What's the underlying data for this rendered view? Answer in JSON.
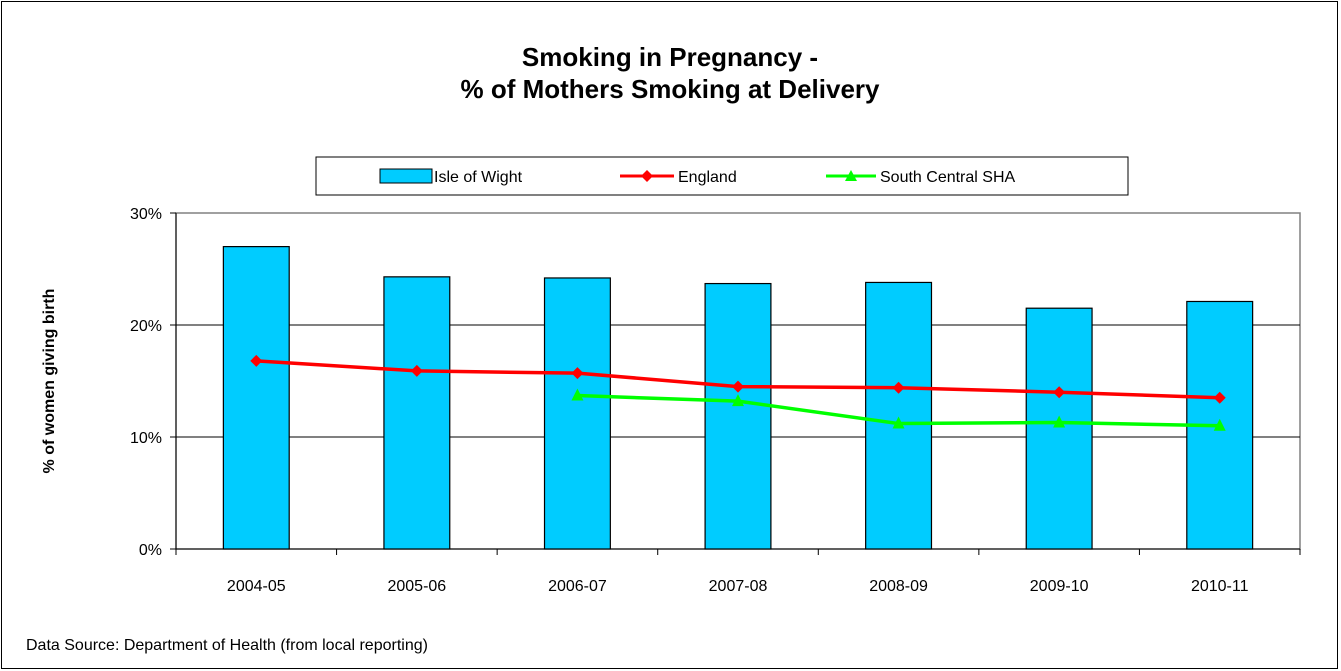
{
  "chart_data": {
    "type": "bar",
    "title_lines": [
      "Smoking in Pregnancy -",
      "% of Mothers Smoking at Delivery"
    ],
    "ylabel": "% of women giving birth",
    "xlabel": "",
    "ylim": [
      0,
      30
    ],
    "yticks": [
      {
        "value": 0,
        "label": "0%"
      },
      {
        "value": 10,
        "label": "10%"
      },
      {
        "value": 20,
        "label": "20%"
      },
      {
        "value": 30,
        "label": "30%"
      }
    ],
    "grid": true,
    "legend_position": "top",
    "categories": [
      "2004-05",
      "2005-06",
      "2006-07",
      "2007-08",
      "2008-09",
      "2009-10",
      "2010-11"
    ],
    "series": [
      {
        "name": "Isle of Wight",
        "kind": "bar",
        "color": "#00CCFF",
        "values": [
          27.0,
          24.3,
          24.2,
          23.7,
          23.8,
          21.5,
          22.1
        ]
      },
      {
        "name": "England",
        "kind": "line",
        "marker": "diamond",
        "color": "#FF0000",
        "values": [
          16.8,
          15.9,
          15.7,
          14.5,
          14.4,
          14.0,
          13.5
        ]
      },
      {
        "name": "South Central SHA",
        "kind": "line",
        "marker": "triangle",
        "color": "#00FF00",
        "values": [
          null,
          null,
          13.7,
          13.2,
          11.2,
          11.3,
          11.0
        ]
      }
    ],
    "source": "Data Source: Department of Health (from local reporting)"
  }
}
